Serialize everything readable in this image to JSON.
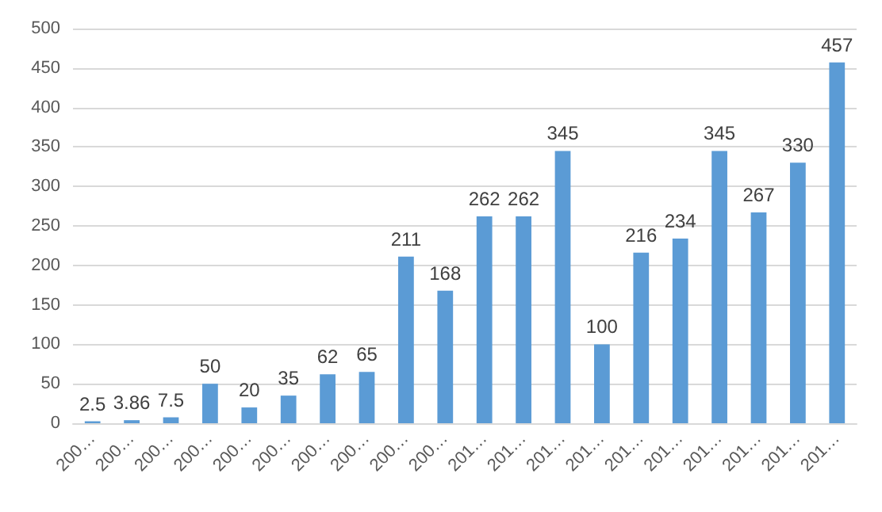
{
  "chart_data": {
    "type": "bar",
    "categories": [
      "200…",
      "200…",
      "200…",
      "200…",
      "200…",
      "200…",
      "200…",
      "200…",
      "200…",
      "200…",
      "201…",
      "201…",
      "201…",
      "201…",
      "201…",
      "201…",
      "201…",
      "201…",
      "201…",
      "201…"
    ],
    "values": [
      2.5,
      3.86,
      7.5,
      50,
      20,
      35,
      62,
      65,
      211,
      168,
      262,
      262,
      345,
      100,
      216,
      234,
      345,
      267,
      330,
      457
    ],
    "color": "#5b9bd5",
    "ylim": [
      0,
      500
    ],
    "yticks": [
      0,
      50,
      100,
      150,
      200,
      250,
      300,
      350,
      400,
      450,
      500
    ],
    "grid": "y",
    "data_labels": true
  }
}
